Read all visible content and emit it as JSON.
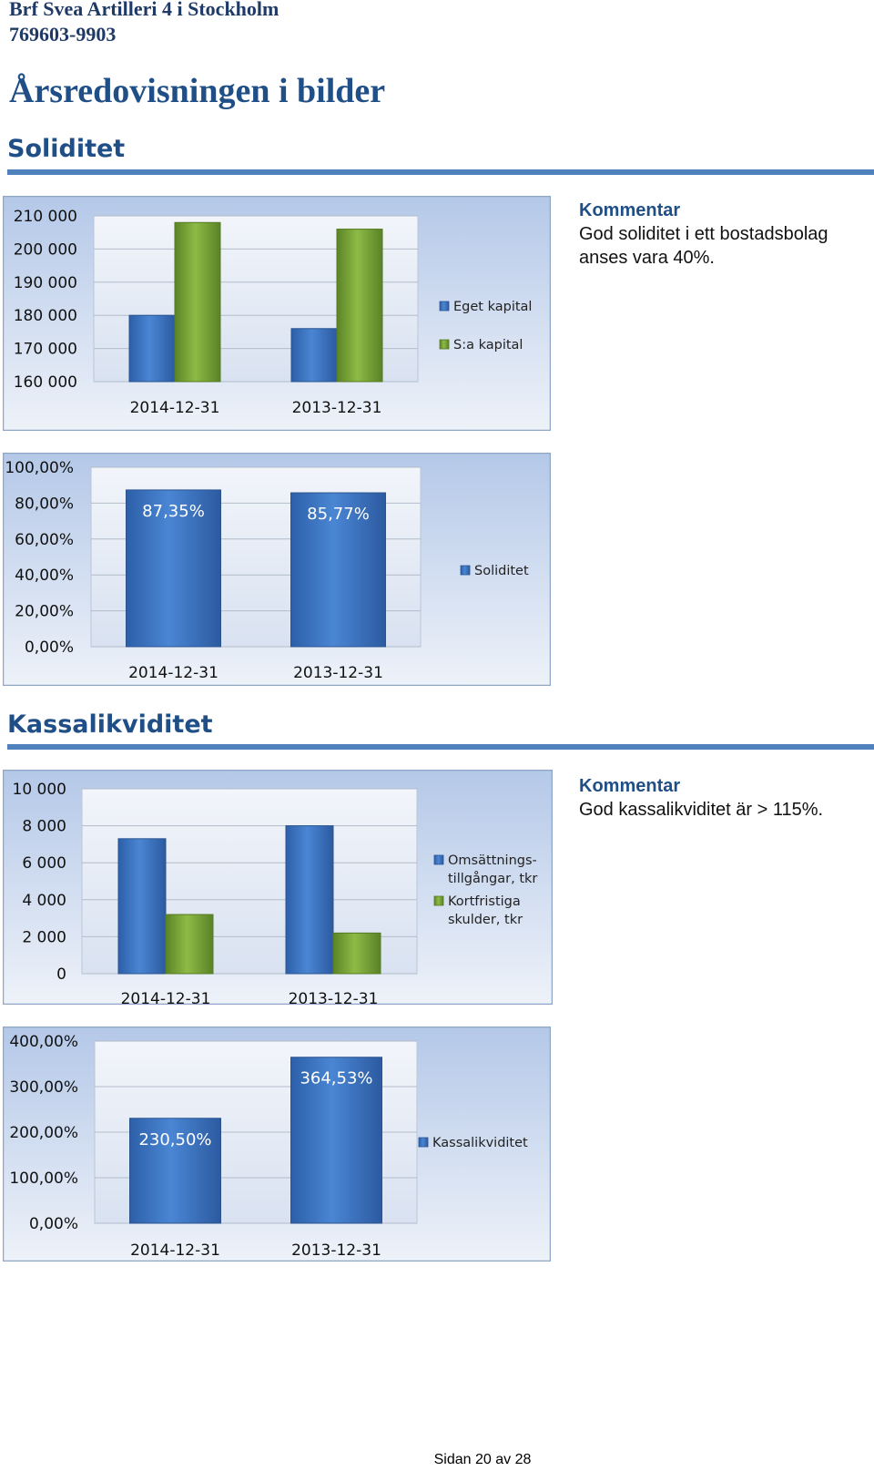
{
  "header": {
    "org_name": "Brf Svea Artilleri 4 i Stockholm",
    "org_number": "769603-9903"
  },
  "main_title": "Årsredovisningen i bilder",
  "sections": {
    "soliditet": {
      "title": "Soliditet",
      "comment_title": "Kommentar",
      "comment_text": "God soliditet i ett bostadsbolag anses vara 40%."
    },
    "kassalikviditet": {
      "title": "Kassalikviditet",
      "comment_title": "Kommentar",
      "comment_text": "God kassalikviditet är > 115%."
    }
  },
  "footer": {
    "page_label": "Sidan 20 av 28"
  },
  "colors": {
    "panel_bg": "#c5d4ec",
    "blue_bar": "#3f78c8",
    "green_bar": "#7aa83a",
    "rule": "#4f81bd",
    "heading": "#1f4f86"
  },
  "chart_data": [
    {
      "type": "bar",
      "categories": [
        "2014-12-31",
        "2013-12-31"
      ],
      "series": [
        {
          "name": "Eget kapital",
          "values": [
            180000,
            176000
          ]
        },
        {
          "name": "S:a kapital",
          "values": [
            208000,
            206000
          ]
        }
      ],
      "ylim": [
        160000,
        210000
      ],
      "yticks": [
        "210 000",
        "200 000",
        "190 000",
        "180 000",
        "170 000",
        "160 000"
      ],
      "legend_position": "right"
    },
    {
      "type": "bar",
      "categories": [
        "2014-12-31",
        "2013-12-31"
      ],
      "series": [
        {
          "name": "Soliditet",
          "values": [
            87.35,
            85.77
          ],
          "labels": [
            "87,35%",
            "85,77%"
          ]
        }
      ],
      "ylim": [
        0,
        100
      ],
      "yticks": [
        "100,00%",
        "80,00%",
        "60,00%",
        "40,00%",
        "20,00%",
        "0,00%"
      ],
      "legend_position": "right"
    },
    {
      "type": "bar",
      "categories": [
        "2014-12-31",
        "2013-12-31"
      ],
      "series": [
        {
          "name": "Omsättnings-tillgångar, tkr",
          "values": [
            7300,
            8000
          ]
        },
        {
          "name": "Kortfristiga skulder, tkr",
          "values": [
            3200,
            2200
          ]
        }
      ],
      "ylim": [
        0,
        10000
      ],
      "yticks": [
        "10 000",
        "8 000",
        "6 000",
        "4 000",
        "2 000",
        "0"
      ],
      "legend_position": "right"
    },
    {
      "type": "bar",
      "categories": [
        "2014-12-31",
        "2013-12-31"
      ],
      "series": [
        {
          "name": "Kassalikviditet",
          "values": [
            230.5,
            364.53
          ],
          "labels": [
            "230,50%",
            "364,53%"
          ]
        }
      ],
      "ylim": [
        0,
        400
      ],
      "yticks": [
        "400,00%",
        "300,00%",
        "200,00%",
        "100,00%",
        "0,00%"
      ],
      "legend_position": "right"
    }
  ]
}
